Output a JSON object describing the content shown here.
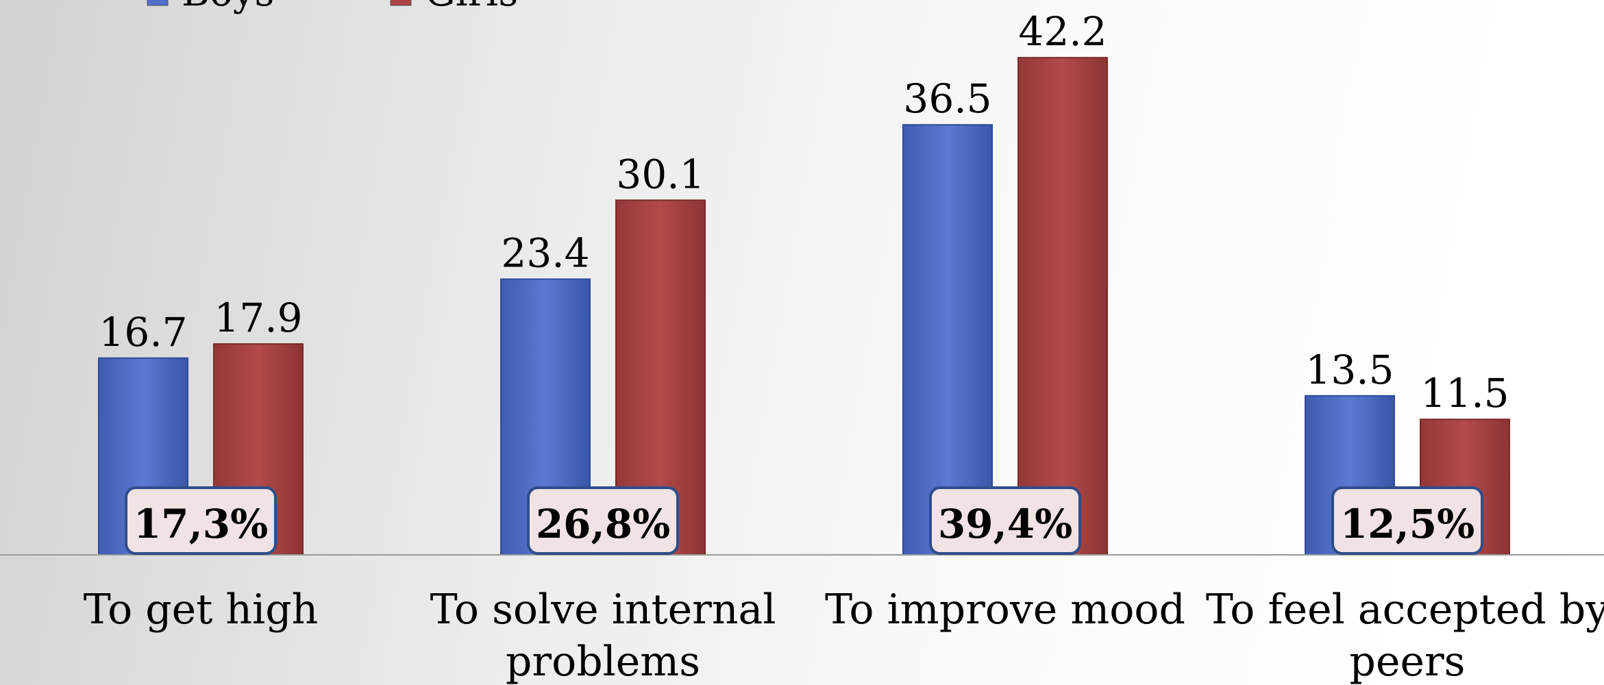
{
  "chart_data": {
    "type": "bar",
    "categories": [
      [
        "To get high"
      ],
      [
        "To solve internal",
        "problems"
      ],
      [
        "To improve mood"
      ],
      [
        "To feel accepted by",
        "peers"
      ]
    ],
    "series": [
      {
        "name": "Boys",
        "values": [
          16.7,
          23.4,
          36.5,
          13.5
        ],
        "color": "#4f6fc8"
      },
      {
        "name": "Girls",
        "values": [
          17.9,
          30.1,
          42.2,
          11.5
        ],
        "color": "#a94343"
      }
    ],
    "totals": [
      "17,3%",
      "26,8%",
      "39,4%",
      "12,5%"
    ],
    "ylim": [
      0,
      42.2
    ],
    "legend_position": "top-left",
    "grid": false
  }
}
